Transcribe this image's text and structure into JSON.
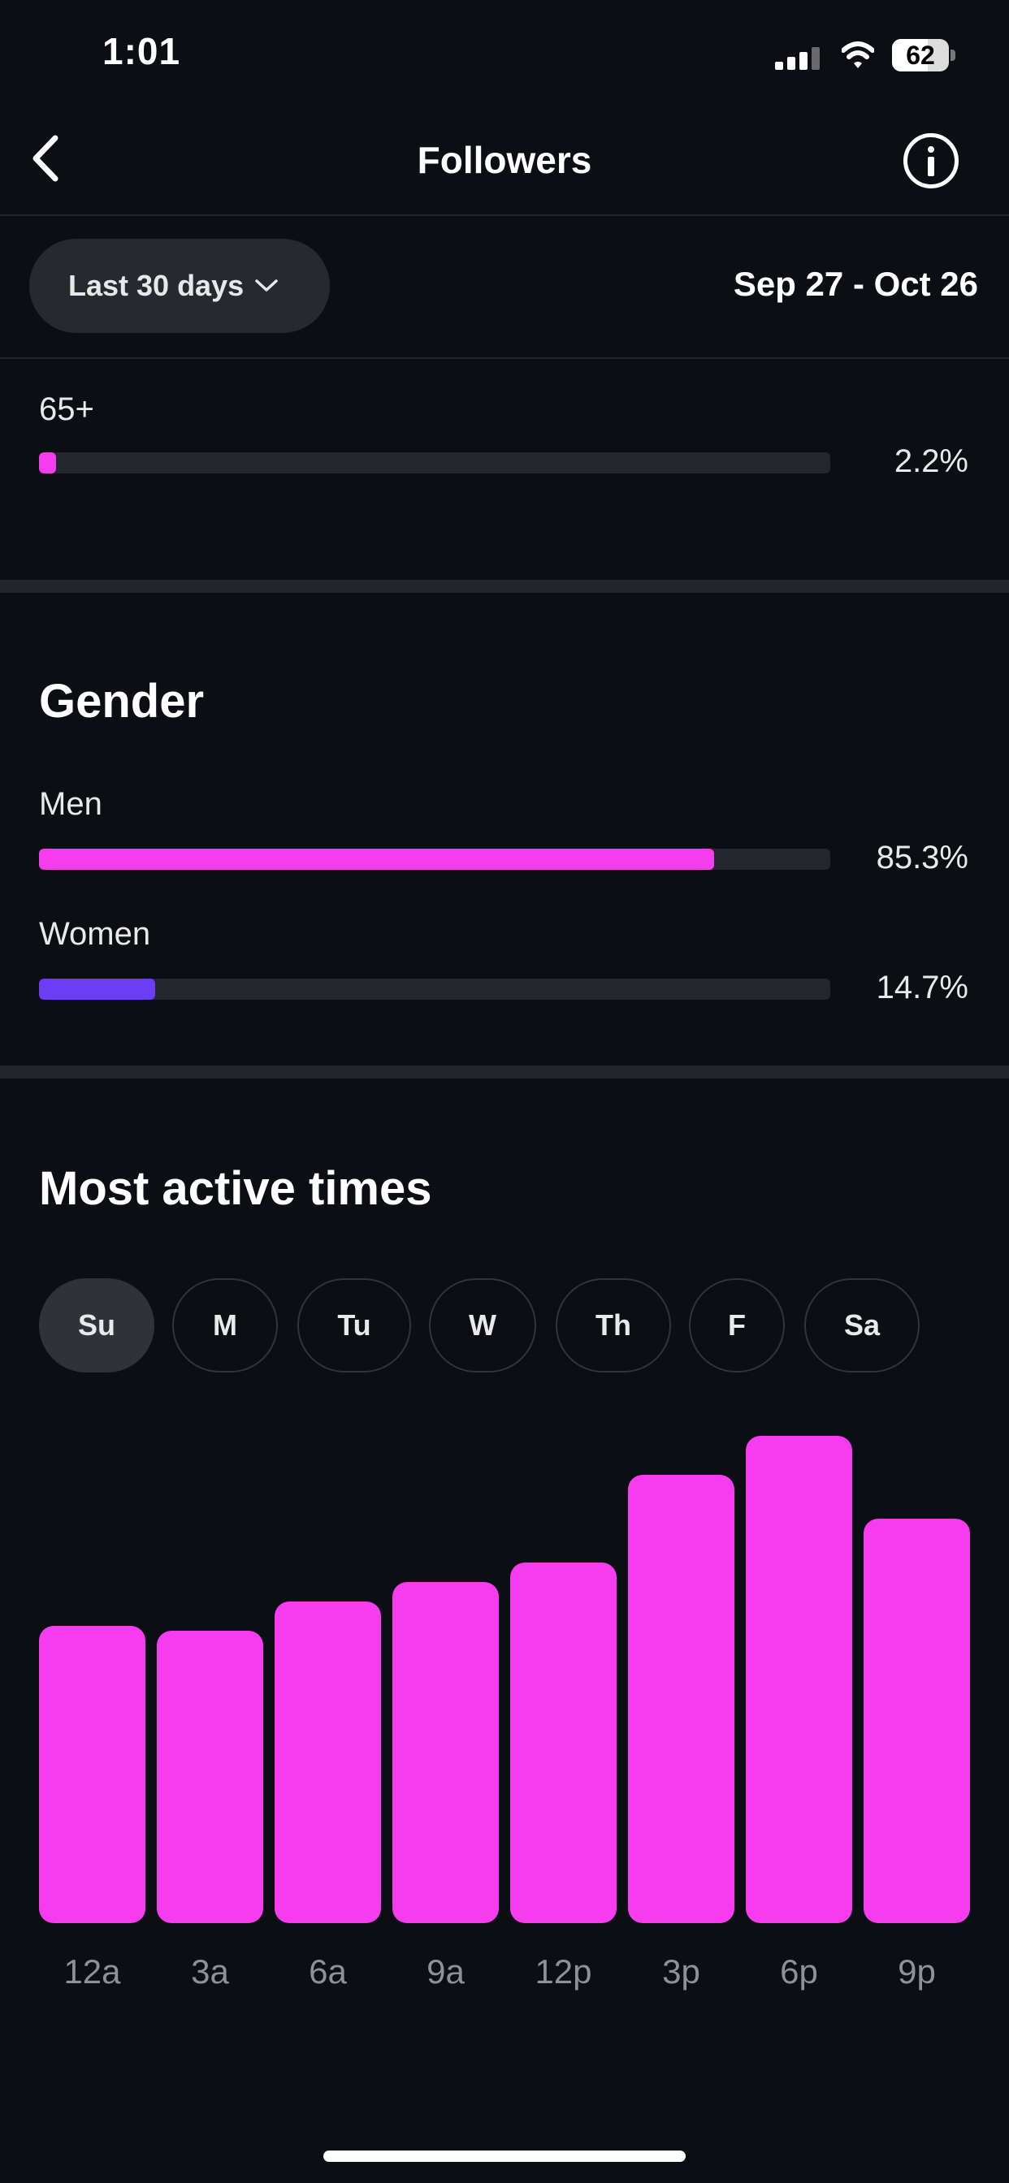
{
  "status_bar": {
    "time": "1:01",
    "battery": "62"
  },
  "header": {
    "title": "Followers"
  },
  "filter": {
    "range_label": "Last 30 days",
    "date_range": "Sep 27 - Oct 26"
  },
  "age": {
    "items": [
      {
        "label": "65+",
        "percent": "2.2%",
        "value": 2.2,
        "color": "#f73cf0"
      }
    ]
  },
  "gender": {
    "title": "Gender",
    "items": [
      {
        "label": "Men",
        "percent": "85.3%",
        "value": 85.3,
        "color": "#f73cf0"
      },
      {
        "label": "Women",
        "percent": "14.7%",
        "value": 14.7,
        "color": "#6c3cf7"
      }
    ]
  },
  "active_times": {
    "title": "Most active times",
    "days": [
      "Su",
      "M",
      "Tu",
      "W",
      "Th",
      "F",
      "Sa"
    ],
    "selected_day": "Su"
  },
  "chart_data": {
    "type": "bar",
    "categories": [
      "12a",
      "3a",
      "6a",
      "9a",
      "12p",
      "3p",
      "6p",
      "9p"
    ],
    "values": [
      61,
      60,
      66,
      70,
      74,
      92,
      100,
      83
    ],
    "ylim": [
      0,
      100
    ],
    "bar_color": "#f73cf0",
    "grid": false
  },
  "colors": {
    "accent": "#f73cf0",
    "secondary": "#6c3cf7",
    "background": "#0b0e12"
  }
}
